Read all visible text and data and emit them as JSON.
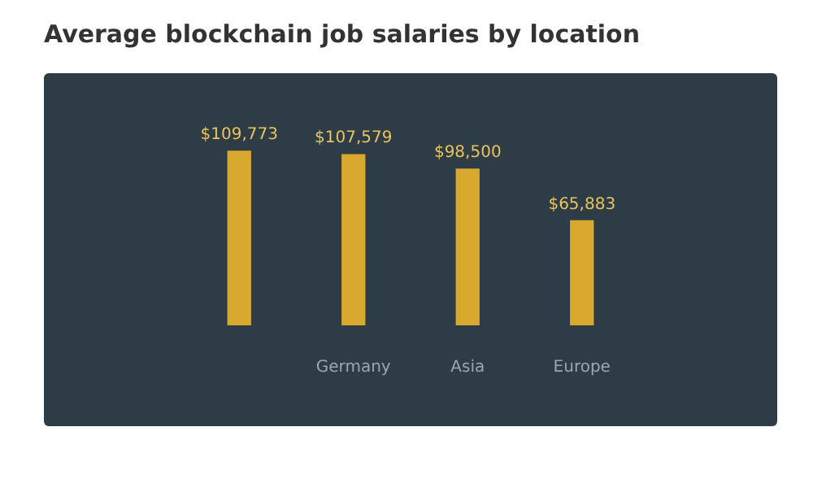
{
  "chart_data": {
    "type": "bar",
    "title": "Average blockchain job salaries by location",
    "categories": [
      null,
      "Germany",
      "Asia",
      "Europe"
    ],
    "values": [
      109773,
      107579,
      98500,
      65883
    ],
    "value_labels": [
      "$109,773",
      "$107,579",
      "$98,500",
      "$65,883"
    ],
    "color": "#d9a82e",
    "grid": false,
    "legend": false,
    "tick_labels": "x"
  }
}
